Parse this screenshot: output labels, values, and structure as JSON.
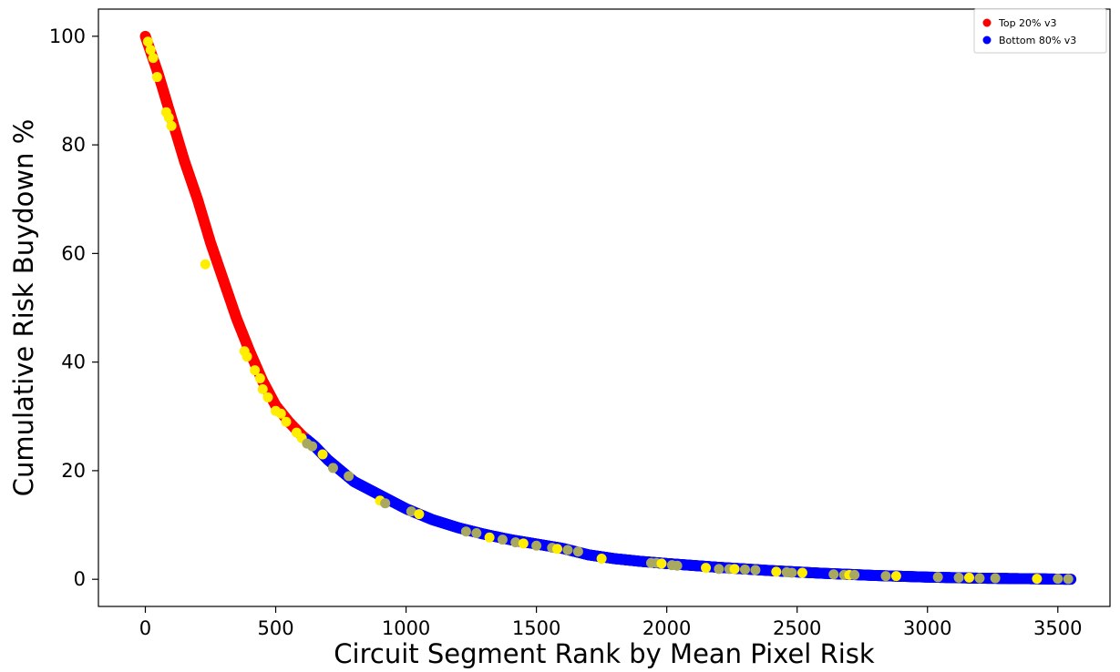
{
  "chart_data": {
    "type": "scatter",
    "title": "",
    "xlabel": "Circuit Segment Rank by Mean Pixel Risk",
    "ylabel": "Cumulative Risk Buydown %",
    "xlim": [
      -180,
      3700
    ],
    "ylim": [
      -5,
      105
    ],
    "x_ticks": [
      0,
      500,
      1000,
      1500,
      2000,
      2500,
      3000,
      3500
    ],
    "y_ticks": [
      0,
      20,
      40,
      60,
      80,
      100
    ],
    "x_tick_labels": [
      "0",
      "500",
      "1000",
      "1500",
      "2000",
      "2500",
      "3000",
      "3500"
    ],
    "y_tick_labels": [
      "0",
      "20",
      "40",
      "60",
      "80",
      "100"
    ],
    "grid": false,
    "legend_position": "top-right",
    "series": [
      {
        "name": "Top 20% v3",
        "color": "#ff0000",
        "x_range": [
          0,
          620
        ],
        "description_of_curve": "cumulative buydown from 100 decreasing to ~26"
      },
      {
        "name": "Bottom 80% v3",
        "color": "#0000ff",
        "x_range": [
          620,
          3550
        ],
        "description_of_curve": "cumulative buydown from ~26 decreasing to ~0"
      }
    ],
    "curve_points": [
      [
        0,
        100
      ],
      [
        50,
        93
      ],
      [
        100,
        85
      ],
      [
        150,
        77
      ],
      [
        200,
        70
      ],
      [
        250,
        62
      ],
      [
        300,
        55
      ],
      [
        350,
        48
      ],
      [
        400,
        42
      ],
      [
        450,
        36.5
      ],
      [
        500,
        32
      ],
      [
        550,
        29
      ],
      [
        600,
        26.5
      ],
      [
        650,
        24.5
      ],
      [
        700,
        22
      ],
      [
        750,
        20
      ],
      [
        800,
        18
      ],
      [
        900,
        15.5
      ],
      [
        1000,
        13
      ],
      [
        1100,
        11
      ],
      [
        1200,
        9.5
      ],
      [
        1300,
        8.3
      ],
      [
        1400,
        7.3
      ],
      [
        1500,
        6.5
      ],
      [
        1600,
        5.7
      ],
      [
        1700,
        4.5
      ],
      [
        1800,
        3.8
      ],
      [
        1900,
        3.3
      ],
      [
        2000,
        2.9
      ],
      [
        2200,
        2.2
      ],
      [
        2400,
        1.6
      ],
      [
        2600,
        1.1
      ],
      [
        2800,
        0.7
      ],
      [
        3000,
        0.4
      ],
      [
        3200,
        0.2
      ],
      [
        3400,
        0.1
      ],
      [
        3550,
        0
      ]
    ],
    "highlight_points": {
      "colors": [
        "#ffee00",
        "#a8a860"
      ],
      "points": [
        [
          10,
          99
        ],
        [
          20,
          97.5
        ],
        [
          30,
          96
        ],
        [
          45,
          92.5
        ],
        [
          80,
          86
        ],
        [
          90,
          85
        ],
        [
          100,
          83.5
        ],
        [
          230,
          58
        ],
        [
          380,
          42
        ],
        [
          390,
          41
        ],
        [
          420,
          38.5
        ],
        [
          440,
          37
        ],
        [
          450,
          35
        ],
        [
          470,
          33.5
        ],
        [
          500,
          31
        ],
        [
          520,
          30.5
        ],
        [
          540,
          29
        ],
        [
          580,
          27
        ],
        [
          600,
          26
        ],
        [
          620,
          25
        ],
        [
          640,
          24.5
        ],
        [
          680,
          23
        ],
        [
          720,
          20.5
        ],
        [
          780,
          19
        ],
        [
          900,
          14.5
        ],
        [
          920,
          14
        ],
        [
          1020,
          12.5
        ],
        [
          1050,
          12
        ],
        [
          1230,
          8.8
        ],
        [
          1270,
          8.5
        ],
        [
          1320,
          7.7
        ],
        [
          1370,
          7.3
        ],
        [
          1420,
          6.8
        ],
        [
          1450,
          6.6
        ],
        [
          1500,
          6.2
        ],
        [
          1560,
          5.8
        ],
        [
          1580,
          5.6
        ],
        [
          1620,
          5.4
        ],
        [
          1660,
          5.1
        ],
        [
          1750,
          3.8
        ],
        [
          1940,
          3.0
        ],
        [
          1960,
          3.0
        ],
        [
          1980,
          2.9
        ],
        [
          2020,
          2.6
        ],
        [
          2040,
          2.5
        ],
        [
          2150,
          2.1
        ],
        [
          2200,
          1.9
        ],
        [
          2240,
          1.9
        ],
        [
          2260,
          1.9
        ],
        [
          2300,
          1.8
        ],
        [
          2340,
          1.7
        ],
        [
          2420,
          1.4
        ],
        [
          2460,
          1.3
        ],
        [
          2480,
          1.2
        ],
        [
          2520,
          1.2
        ],
        [
          2640,
          0.9
        ],
        [
          2680,
          0.8
        ],
        [
          2700,
          0.8
        ],
        [
          2720,
          0.8
        ],
        [
          2840,
          0.6
        ],
        [
          2880,
          0.6
        ],
        [
          3040,
          0.4
        ],
        [
          3120,
          0.3
        ],
        [
          3160,
          0.3
        ],
        [
          3200,
          0.2
        ],
        [
          3260,
          0.2
        ],
        [
          3420,
          0.1
        ],
        [
          3500,
          0.1
        ],
        [
          3540,
          0.05
        ]
      ]
    }
  }
}
